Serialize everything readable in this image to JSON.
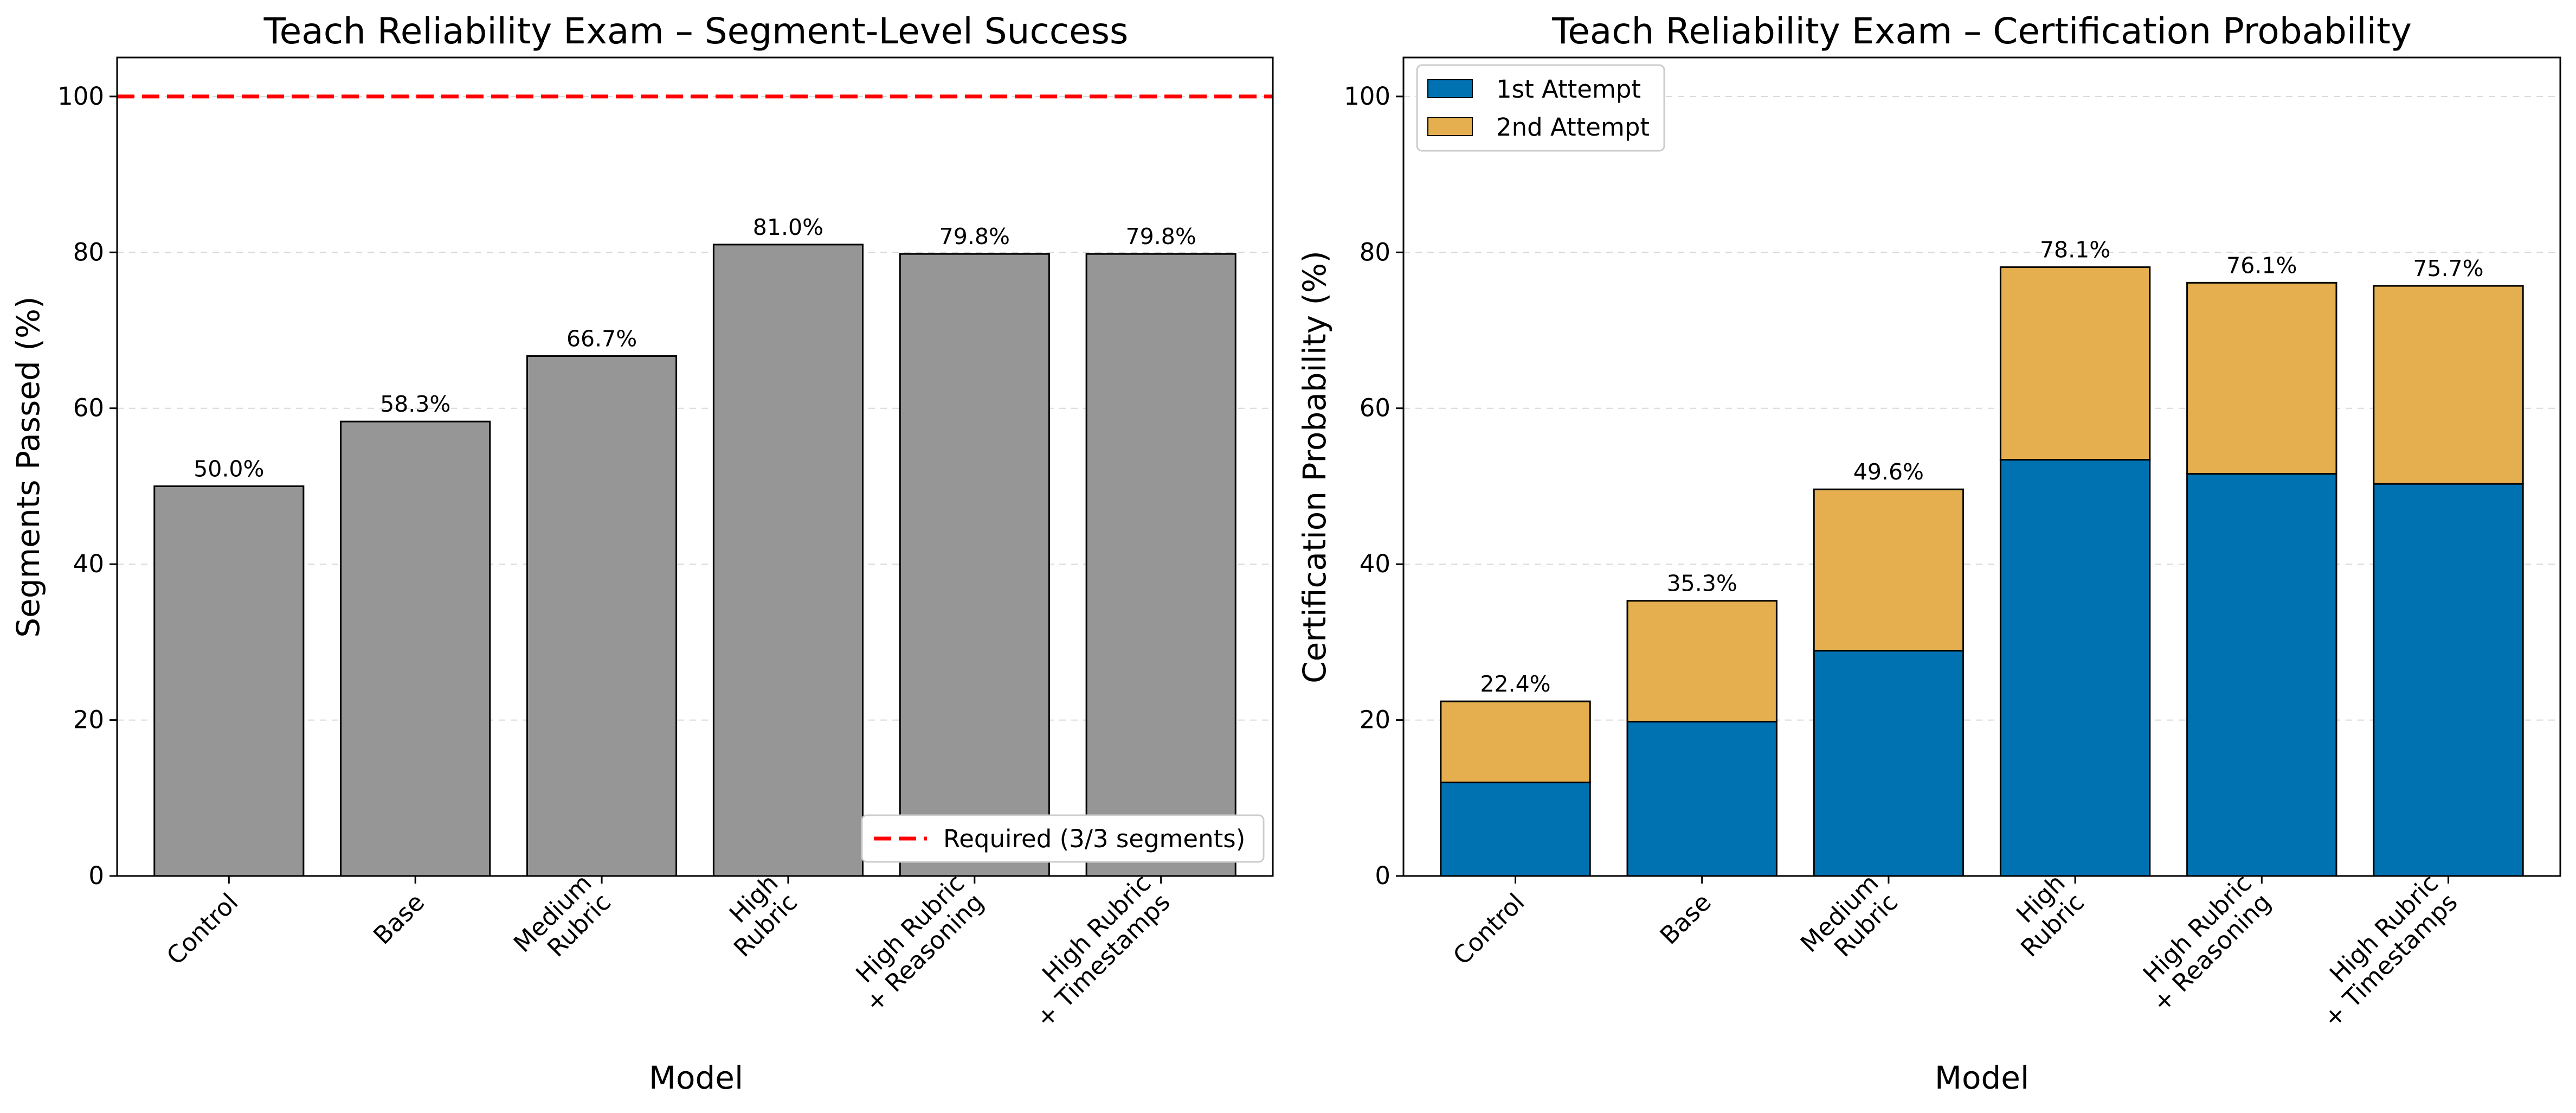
{
  "chart_data": [
    {
      "type": "bar",
      "title": "Teach Reliability Exam – Segment-Level Success",
      "xlabel": "Model",
      "ylabel": "Segments Passed (%)",
      "categories": [
        [
          "Control"
        ],
        [
          "Base"
        ],
        [
          "Medium",
          "Rubric"
        ],
        [
          "High",
          "Rubric"
        ],
        [
          "High Rubric",
          "+ Reasoning"
        ],
        [
          "High Rubric",
          "+ Timestamps"
        ]
      ],
      "series": [
        {
          "values": [
            50.0,
            58.3,
            66.7,
            81.0,
            79.8,
            79.8
          ],
          "color": "#969696"
        }
      ],
      "value_labels": [
        "50.0%",
        "58.3%",
        "66.7%",
        "81.0%",
        "79.8%",
        "79.8%"
      ],
      "reference_line": {
        "y": 100,
        "color": "#ff0000",
        "style": "dashed",
        "label": "Required (3/3 segments)"
      },
      "ylim": [
        0,
        105
      ],
      "yticks": [
        0,
        20,
        40,
        60,
        80,
        100
      ],
      "grid": "y-dashed",
      "legend_position": "lower-right"
    },
    {
      "type": "bar",
      "stacked": true,
      "title": "Teach Reliability Exam – Certification Probability",
      "xlabel": "Model",
      "ylabel": "Certification Probability (%)",
      "categories": [
        [
          "Control"
        ],
        [
          "Base"
        ],
        [
          "Medium",
          "Rubric"
        ],
        [
          "High",
          "Rubric"
        ],
        [
          "High Rubric",
          "+ Reasoning"
        ],
        [
          "High Rubric",
          "+ Timestamps"
        ]
      ],
      "series": [
        {
          "name": "1st Attempt",
          "values": [
            12.0,
            19.8,
            28.9,
            53.4,
            51.6,
            50.3
          ],
          "color": "#0072b2"
        },
        {
          "name": "2nd Attempt",
          "values": [
            10.4,
            15.5,
            20.7,
            24.7,
            24.5,
            25.4
          ],
          "color": "#e5af4f"
        }
      ],
      "value_labels": [
        "22.4%",
        "35.3%",
        "49.6%",
        "78.1%",
        "76.1%",
        "75.7%"
      ],
      "ylim": [
        0,
        105
      ],
      "yticks": [
        0,
        20,
        40,
        60,
        80,
        100
      ],
      "grid": "y-dashed",
      "legend_position": "upper-left"
    }
  ]
}
